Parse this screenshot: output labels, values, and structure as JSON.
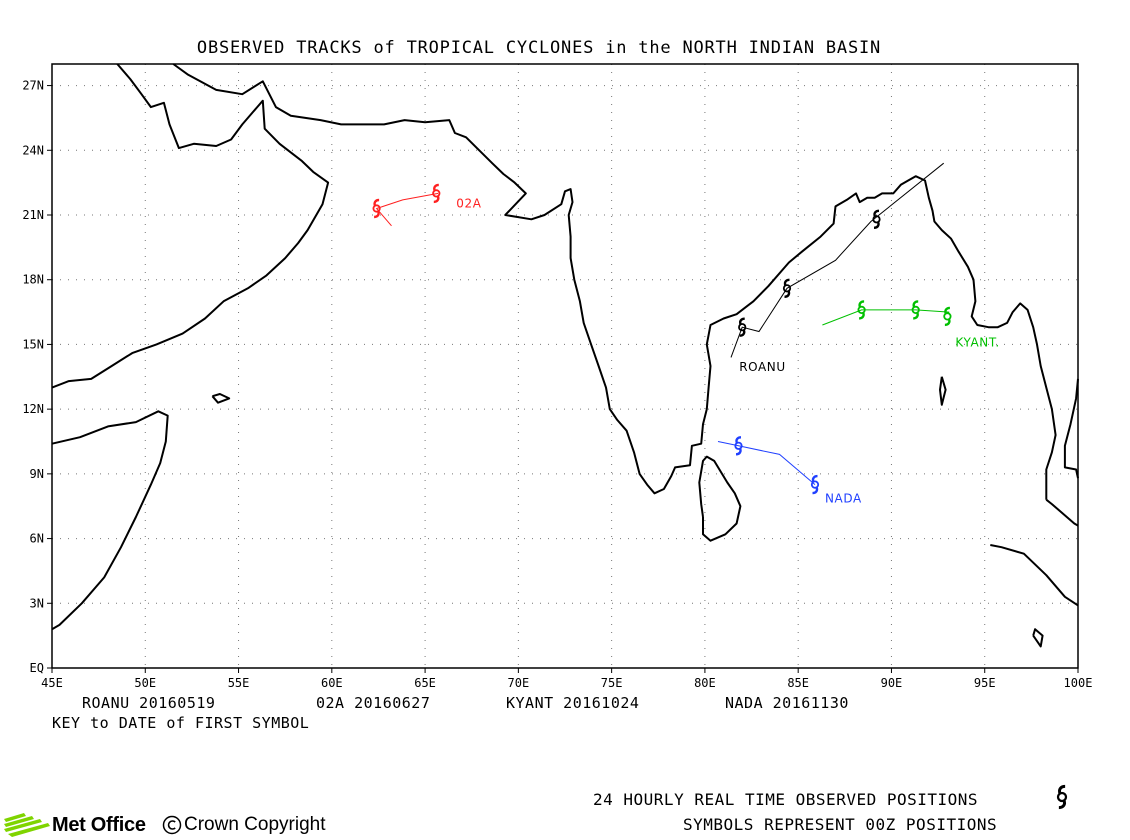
{
  "title": "OBSERVED TRACKS of TROPICAL CYCLONES in the NORTH INDIAN BASIN",
  "axes": {
    "lon": {
      "min": 45,
      "max": 100,
      "step": 5,
      "ticks": [
        "45E",
        "50E",
        "55E",
        "60E",
        "65E",
        "70E",
        "75E",
        "80E",
        "85E",
        "90E",
        "95E",
        "100E"
      ]
    },
    "lat": {
      "min": 0,
      "max": 28,
      "step": 3,
      "ticks": [
        "EQ",
        "3N",
        "6N",
        "9N",
        "12N",
        "15N",
        "18N",
        "21N",
        "24N",
        "27N"
      ]
    },
    "grid": "dotted"
  },
  "storms": [
    {
      "name": "ROANU",
      "label": "ROANU",
      "color": "#000000",
      "track": [
        [
          81.4,
          14.4
        ],
        [
          82.0,
          15.8
        ],
        [
          82.9,
          15.6
        ],
        [
          84.4,
          17.6
        ],
        [
          87.0,
          18.9
        ],
        [
          88.9,
          20.7
        ],
        [
          92.8,
          23.4
        ]
      ],
      "symbols": [
        [
          82.0,
          15.8
        ],
        [
          84.4,
          17.6
        ],
        [
          89.2,
          20.8
        ]
      ]
    },
    {
      "name": "02A",
      "label": "02A",
      "color": "#ff2020",
      "track": [
        [
          63.2,
          20.5
        ],
        [
          62.4,
          21.3
        ],
        [
          63.8,
          21.7
        ],
        [
          65.7,
          22.0
        ]
      ],
      "symbols": [
        [
          62.4,
          21.3
        ],
        [
          65.6,
          22.0
        ]
      ]
    },
    {
      "name": "KYANT",
      "label": "KYANT.",
      "color": "#00c000",
      "track": [
        [
          86.3,
          15.9
        ],
        [
          88.4,
          16.6
        ],
        [
          91.3,
          16.6
        ],
        [
          93.1,
          16.5
        ]
      ],
      "symbols": [
        [
          88.4,
          16.6
        ],
        [
          91.3,
          16.6
        ],
        [
          93.0,
          16.3
        ]
      ]
    },
    {
      "name": "NADA",
      "label": "NADA",
      "color": "#2040ff",
      "track": [
        [
          80.7,
          10.5
        ],
        [
          81.8,
          10.3
        ],
        [
          84.0,
          9.9
        ],
        [
          85.9,
          8.5
        ]
      ],
      "symbols": [
        [
          81.8,
          10.3
        ],
        [
          85.9,
          8.5
        ]
      ]
    }
  ],
  "legend": {
    "dates": [
      "ROANU 20160519",
      "02A 20160627",
      "KYANT 20161024",
      "NADA 20161130"
    ],
    "key_text": "KEY to DATE of FIRST SYMBOL"
  },
  "footer": {
    "positions_text": "24 HOURLY REAL TIME OBSERVED POSITIONS",
    "symbols_text": "SYMBOLS REPRESENT 00Z POSITIONS",
    "brand": "Met Office",
    "copyright": "Crown Copyright"
  }
}
